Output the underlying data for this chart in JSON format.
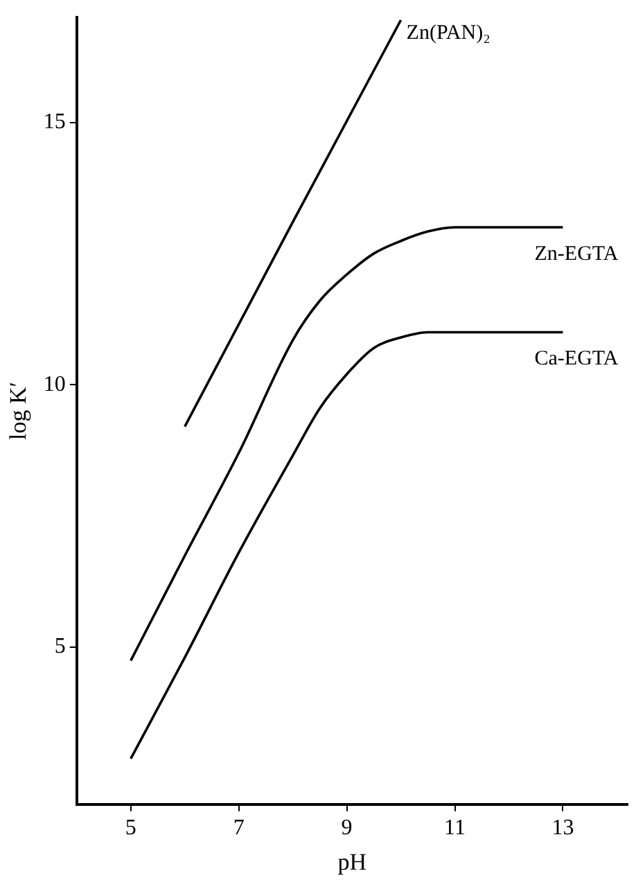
{
  "chart_data": {
    "type": "line",
    "xlabel": "pH",
    "ylabel": "log K′",
    "xlim": [
      4,
      14.2
    ],
    "ylim": [
      2,
      17
    ],
    "xticks": [
      5,
      7,
      9,
      11,
      13
    ],
    "yticks": [
      5,
      10,
      15
    ],
    "grid": false,
    "legend": false,
    "marker": "none",
    "line_style": "solid",
    "series": [
      {
        "name": "Zn(PAN)₂",
        "color": "#000000",
        "x": [
          6,
          8,
          10
        ],
        "values": [
          9.2,
          13.1,
          16.95
        ]
      },
      {
        "name": "Zn-EGTA",
        "color": "#000000",
        "x": [
          5,
          6,
          7,
          8,
          8.5,
          9,
          9.5,
          10,
          10.5,
          11,
          13
        ],
        "values": [
          4.74,
          6.74,
          8.7,
          10.85,
          11.6,
          12.1,
          12.5,
          12.74,
          12.92,
          13,
          13
        ]
      },
      {
        "name": "Ca-EGTA",
        "color": "#000000",
        "x": [
          5,
          6,
          7,
          8,
          8.5,
          9,
          9.5,
          10,
          10.5,
          13
        ],
        "values": [
          2.87,
          4.8,
          6.8,
          8.65,
          9.55,
          10.2,
          10.7,
          10.9,
          11,
          11
        ]
      }
    ]
  }
}
